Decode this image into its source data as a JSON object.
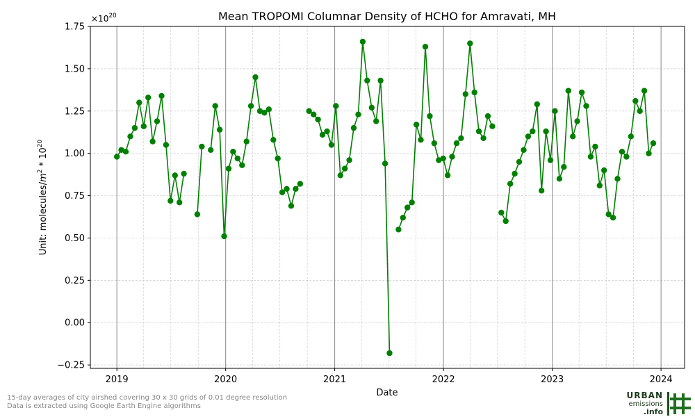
{
  "chart_data": {
    "type": "line",
    "title": "Mean TROPOMI Columnar Density of HCHO for Amravati, MH",
    "xlabel": "Date",
    "ylabel_prefix": "Unit: molecules/",
    "ylabel_m": "m",
    "ylabel_sup1": "2",
    "ylabel_mid": " * 10",
    "ylabel_sup2": "20",
    "multiplier_base": "×10",
    "multiplier_exp": "20",
    "ylim": [
      -0.27,
      1.75
    ],
    "yticks": [
      -0.25,
      0.0,
      0.25,
      0.5,
      0.75,
      1.0,
      1.25,
      1.5,
      1.75
    ],
    "ytick_labels": [
      "−0.25",
      "0.00",
      "0.25",
      "0.50",
      "0.75",
      "1.00",
      "1.25",
      "1.50",
      "1.75"
    ],
    "xlim": [
      "2018-10-04",
      "2024-03-20"
    ],
    "xticks": [
      "2019-01-01",
      "2020-01-01",
      "2021-01-01",
      "2022-01-01",
      "2023-01-01",
      "2024-01-01"
    ],
    "xtick_labels": [
      "2019",
      "2020",
      "2021",
      "2022",
      "2023",
      "2024"
    ],
    "grid": true,
    "color": "#008000",
    "series": [
      {
        "points": [
          [
            "2019-01-01",
            0.98
          ],
          [
            "2019-01-16",
            1.02
          ],
          [
            "2019-01-31",
            1.01
          ],
          [
            "2019-02-15",
            1.1
          ],
          [
            "2019-03-02",
            1.15
          ],
          [
            "2019-03-17",
            1.3
          ],
          [
            "2019-04-01",
            1.16
          ],
          [
            "2019-04-16",
            1.33
          ],
          [
            "2019-05-01",
            1.07
          ],
          [
            "2019-05-16",
            1.19
          ],
          [
            "2019-05-31",
            1.34
          ],
          [
            "2019-06-15",
            1.05
          ],
          [
            "2019-06-30",
            0.72
          ],
          [
            "2019-07-15",
            0.87
          ],
          [
            "2019-07-30",
            0.71
          ],
          [
            "2019-08-14",
            0.88
          ],
          [
            "2019-08-29",
            null
          ],
          [
            "2019-09-28",
            0.64
          ],
          [
            "2019-10-13",
            1.04
          ],
          [
            "2019-10-28",
            null
          ],
          [
            "2019-11-12",
            1.02
          ],
          [
            "2019-11-27",
            1.28
          ],
          [
            "2019-12-12",
            1.14
          ],
          [
            "2019-12-27",
            0.51
          ],
          [
            "2020-01-11",
            0.91
          ],
          [
            "2020-01-26",
            1.01
          ],
          [
            "2020-02-10",
            0.97
          ],
          [
            "2020-02-25",
            0.93
          ],
          [
            "2020-03-11",
            1.07
          ],
          [
            "2020-03-26",
            1.28
          ],
          [
            "2020-04-10",
            1.45
          ],
          [
            "2020-04-25",
            1.25
          ],
          [
            "2020-05-10",
            1.24
          ],
          [
            "2020-05-25",
            1.26
          ],
          [
            "2020-06-09",
            1.08
          ],
          [
            "2020-06-24",
            0.97
          ],
          [
            "2020-07-09",
            0.77
          ],
          [
            "2020-07-24",
            0.79
          ],
          [
            "2020-08-08",
            0.69
          ],
          [
            "2020-08-23",
            0.79
          ],
          [
            "2020-09-07",
            0.82
          ],
          [
            "2020-09-22",
            null
          ],
          [
            "2020-10-07",
            1.25
          ],
          [
            "2020-10-22",
            1.23
          ],
          [
            "2020-11-06",
            1.2
          ],
          [
            "2020-11-21",
            1.11
          ],
          [
            "2020-12-06",
            1.13
          ],
          [
            "2020-12-21",
            1.05
          ],
          [
            "2021-01-05",
            1.28
          ],
          [
            "2021-01-20",
            0.87
          ],
          [
            "2021-02-04",
            0.91
          ],
          [
            "2021-02-19",
            0.96
          ],
          [
            "2021-03-06",
            1.15
          ],
          [
            "2021-03-21",
            1.23
          ],
          [
            "2021-04-05",
            1.66
          ],
          [
            "2021-04-20",
            1.43
          ],
          [
            "2021-05-05",
            1.27
          ],
          [
            "2021-05-20",
            1.19
          ],
          [
            "2021-06-04",
            1.43
          ],
          [
            "2021-06-19",
            0.94
          ],
          [
            "2021-07-04",
            -0.18
          ],
          [
            "2021-07-19",
            null
          ],
          [
            "2021-08-03",
            0.55
          ],
          [
            "2021-08-18",
            0.62
          ],
          [
            "2021-09-02",
            0.68
          ],
          [
            "2021-09-17",
            0.71
          ],
          [
            "2021-10-02",
            1.17
          ],
          [
            "2021-10-17",
            1.08
          ],
          [
            "2021-11-01",
            1.63
          ],
          [
            "2021-11-16",
            1.22
          ],
          [
            "2021-12-01",
            1.06
          ],
          [
            "2021-12-16",
            0.96
          ],
          [
            "2021-12-31",
            0.97
          ],
          [
            "2022-01-15",
            0.87
          ],
          [
            "2022-01-30",
            0.98
          ],
          [
            "2022-02-14",
            1.06
          ],
          [
            "2022-03-01",
            1.09
          ],
          [
            "2022-03-16",
            1.35
          ],
          [
            "2022-03-31",
            1.65
          ],
          [
            "2022-04-15",
            1.36
          ],
          [
            "2022-04-30",
            1.13
          ],
          [
            "2022-05-15",
            1.09
          ],
          [
            "2022-05-30",
            1.22
          ],
          [
            "2022-06-14",
            1.16
          ],
          [
            "2022-06-29",
            null
          ],
          [
            "2022-07-14",
            0.65
          ],
          [
            "2022-07-29",
            0.6
          ],
          [
            "2022-08-13",
            0.82
          ],
          [
            "2022-08-28",
            0.88
          ],
          [
            "2022-09-12",
            0.95
          ],
          [
            "2022-09-27",
            1.02
          ],
          [
            "2022-10-12",
            1.1
          ],
          [
            "2022-10-27",
            1.13
          ],
          [
            "2022-11-11",
            1.29
          ],
          [
            "2022-11-26",
            0.78
          ],
          [
            "2022-12-11",
            1.13
          ],
          [
            "2022-12-26",
            0.96
          ],
          [
            "2023-01-10",
            1.25
          ],
          [
            "2023-01-25",
            0.85
          ],
          [
            "2023-02-09",
            0.92
          ],
          [
            "2023-02-24",
            1.37
          ],
          [
            "2023-03-11",
            1.1
          ],
          [
            "2023-03-26",
            1.19
          ],
          [
            "2023-04-10",
            1.36
          ],
          [
            "2023-04-25",
            1.28
          ],
          [
            "2023-05-10",
            0.98
          ],
          [
            "2023-05-25",
            1.04
          ],
          [
            "2023-06-09",
            0.81
          ],
          [
            "2023-06-24",
            0.9
          ],
          [
            "2023-07-09",
            0.64
          ],
          [
            "2023-07-24",
            0.62
          ],
          [
            "2023-08-08",
            0.85
          ],
          [
            "2023-08-23",
            1.01
          ],
          [
            "2023-09-07",
            0.98
          ],
          [
            "2023-09-22",
            1.1
          ],
          [
            "2023-10-07",
            1.31
          ],
          [
            "2023-10-22",
            1.25
          ],
          [
            "2023-11-06",
            1.37
          ],
          [
            "2023-11-21",
            1.0
          ],
          [
            "2023-12-06",
            1.06
          ]
        ]
      }
    ]
  },
  "footnote": {
    "line1": "15-day averages of city airshed covering 30 x 30 grids of 0.01 degree resolution",
    "line2": "Data is extracted using Google Earth Engine algorithms"
  },
  "logo": {
    "line1": "URBAN",
    "line2": "emissions",
    "line3": ".info"
  }
}
